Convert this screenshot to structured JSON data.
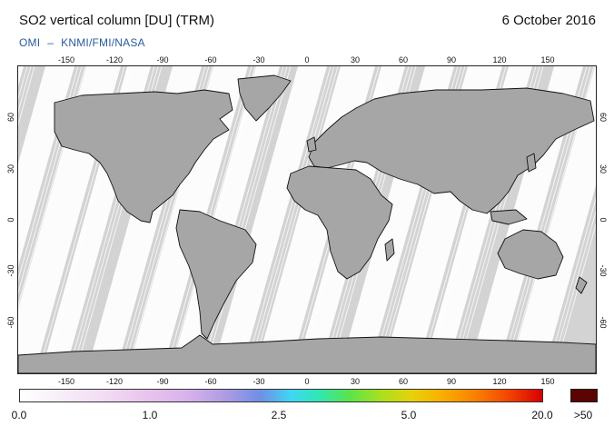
{
  "header": {
    "title": "SO2 vertical column [DU] (TRM)",
    "date": "6 October 2016",
    "credit_left": "OMI",
    "credit_dash": "–",
    "credit_right": "KNMI/FMI/NASA"
  },
  "map": {
    "projection": "equirectangular",
    "background_color": "#d3d3d3",
    "swath_color": "#ffffff",
    "land_color": "#a6a6a6",
    "lon_ticks": [
      "-150",
      "-120",
      "-90",
      "-60",
      "-30",
      "0",
      "30",
      "60",
      "90",
      "120",
      "150"
    ],
    "lat_ticks_left": [
      "60",
      "30",
      "0",
      "-30",
      "-60"
    ],
    "lat_ticks_right": [
      "60",
      "30",
      "0",
      "-30",
      "-60"
    ]
  },
  "colorbar": {
    "labels": [
      "0.0",
      "1.0",
      "2.5",
      "5.0",
      "20.0"
    ],
    "overflow_label": ">50",
    "overflow_color": "#5a0404"
  }
}
